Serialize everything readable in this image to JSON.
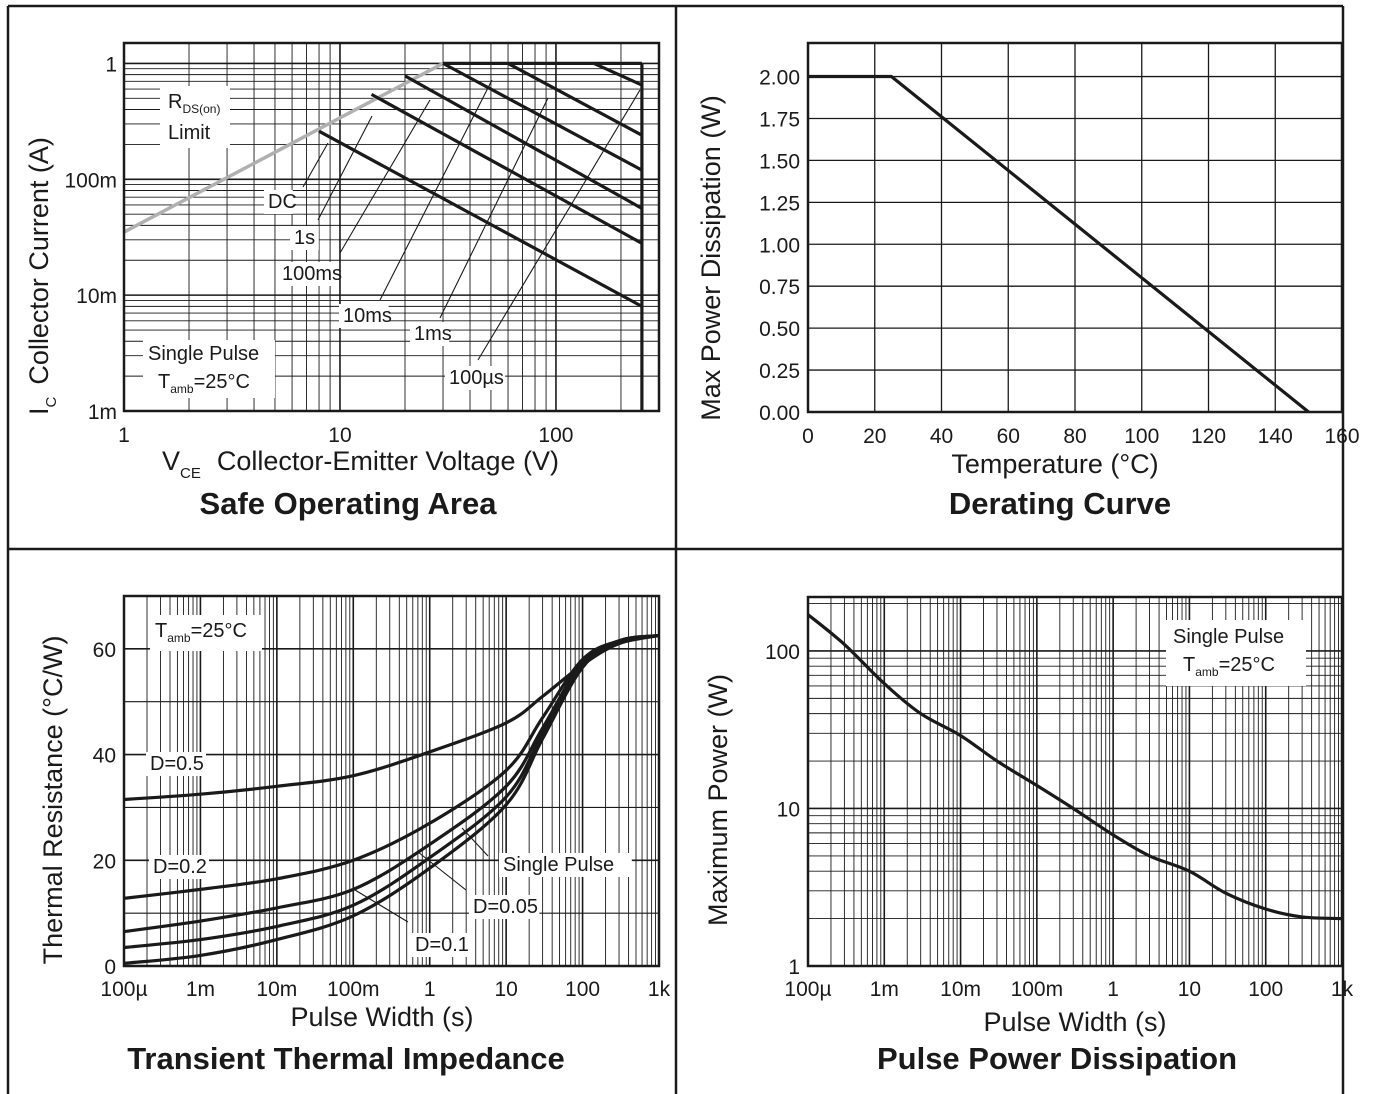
{
  "chart_data": [
    {
      "type": "line",
      "title": "Safe Operating Area",
      "xlabel": {
        "main": "V",
        "sub": "CE",
        "rest": "Collector-Emitter Voltage (V)"
      },
      "ylabel": {
        "main": "I",
        "sub": "C",
        "rest": "Collector Current (A)"
      },
      "xscale": "log",
      "yscale": "log",
      "xlim": [
        1,
        300
      ],
      "ylim": [
        0.001,
        1.5
      ],
      "grid": true,
      "xticks": [
        {
          "v": 1,
          "label": "1"
        },
        {
          "v": 10,
          "label": "10"
        },
        {
          "v": 100,
          "label": "100"
        }
      ],
      "yticks": [
        {
          "v": 1,
          "label": "1"
        },
        {
          "v": 0.1,
          "label": "100m"
        },
        {
          "v": 0.01,
          "label": "10m"
        },
        {
          "v": 0.001,
          "label": "1m"
        }
      ],
      "rds_limit": {
        "label_main": "R",
        "label_sub": "DS(on)",
        "label_line2": "Limit",
        "x": [
          1,
          30
        ],
        "y": [
          0.035,
          1.0
        ],
        "color": "#b0b0b0"
      },
      "series": [
        {
          "name": "DC",
          "x": [
            8,
            250
          ],
          "y": [
            0.26,
            0.008
          ]
        },
        {
          "name": "1s",
          "x": [
            14,
            250
          ],
          "y": [
            0.54,
            0.028
          ]
        },
        {
          "name": "100ms",
          "x": [
            20,
            250
          ],
          "y": [
            0.78,
            0.056
          ]
        },
        {
          "name": "10ms",
          "x": [
            30,
            250
          ],
          "y": [
            1.0,
            0.12
          ]
        },
        {
          "name": "1ms",
          "x": [
            60,
            250
          ],
          "y": [
            1.0,
            0.24
          ]
        },
        {
          "name": "100µs",
          "x": [
            150,
            250
          ],
          "y": [
            1.0,
            0.65
          ]
        }
      ],
      "voltage_limit": {
        "v": 250,
        "i_max": 1.0
      },
      "annotation": {
        "line1": "Single Pulse",
        "line2_main": "T",
        "line2_sub": "amb",
        "line2_rest": "=25°C"
      }
    },
    {
      "type": "line",
      "title": "Derating Curve",
      "xlabel": "Temperature (°C)",
      "ylabel": "Max Power Dissipation (W)",
      "xlim": [
        0,
        160
      ],
      "ylim": [
        0,
        2.2
      ],
      "grid": true,
      "xticks": [
        {
          "v": 0,
          "label": "0"
        },
        {
          "v": 20,
          "label": "20"
        },
        {
          "v": 40,
          "label": "40"
        },
        {
          "v": 60,
          "label": "60"
        },
        {
          "v": 80,
          "label": "80"
        },
        {
          "v": 100,
          "label": "100"
        },
        {
          "v": 120,
          "label": "120"
        },
        {
          "v": 140,
          "label": "140"
        },
        {
          "v": 160,
          "label": "160"
        }
      ],
      "yticks": [
        {
          "v": 0,
          "label": "0.00"
        },
        {
          "v": 0.25,
          "label": "0.25"
        },
        {
          "v": 0.5,
          "label": "0.50"
        },
        {
          "v": 0.75,
          "label": "0.75"
        },
        {
          "v": 1.0,
          "label": "1.00"
        },
        {
          "v": 1.25,
          "label": "1.25"
        },
        {
          "v": 1.5,
          "label": "1.50"
        },
        {
          "v": 1.75,
          "label": "1.75"
        },
        {
          "v": 2.0,
          "label": "2.00"
        }
      ],
      "series": [
        {
          "name": "",
          "x": [
            0,
            25,
            150
          ],
          "y": [
            2.0,
            2.0,
            0.0
          ]
        }
      ]
    },
    {
      "type": "line",
      "title": "Transient Thermal Impedance",
      "xlabel": "Pulse Width (s)",
      "ylabel": "Thermal Resistance (°C/W)",
      "xscale": "log",
      "xlim": [
        0.0001,
        1000
      ],
      "ylim": [
        0,
        70
      ],
      "grid": true,
      "xticks": [
        {
          "v": 0.0001,
          "label": "100µ"
        },
        {
          "v": 0.001,
          "label": "1m"
        },
        {
          "v": 0.01,
          "label": "10m"
        },
        {
          "v": 0.1,
          "label": "100m"
        },
        {
          "v": 1,
          "label": "1"
        },
        {
          "v": 10,
          "label": "10"
        },
        {
          "v": 100,
          "label": "100"
        },
        {
          "v": 1000,
          "label": "1k"
        }
      ],
      "yticks": [
        {
          "v": 0,
          "label": "0"
        },
        {
          "v": 20,
          "label": "20"
        },
        {
          "v": 40,
          "label": "40"
        },
        {
          "v": 60,
          "label": "60"
        }
      ],
      "annotation": {
        "line1_main": "T",
        "line1_sub": "amb",
        "line1_rest": "=25°C"
      },
      "series": [
        {
          "name": "D=0.5",
          "x": [
            0.0001,
            0.001,
            0.01,
            0.1,
            1,
            10,
            30,
            100,
            300,
            1000
          ],
          "y": [
            31.5,
            32.5,
            34,
            36,
            40.5,
            46,
            51,
            57,
            61,
            62.5
          ]
        },
        {
          "name": "D=0.2",
          "x": [
            0.0001,
            0.001,
            0.01,
            0.1,
            1,
            10,
            30,
            100,
            300,
            1000
          ],
          "y": [
            12.8,
            14.5,
            16.5,
            20,
            27,
            37,
            47,
            58,
            61.5,
            62.5
          ]
        },
        {
          "name": "D=0.1",
          "x": [
            0.0001,
            0.001,
            0.01,
            0.1,
            1,
            10,
            30,
            100,
            300,
            1000
          ],
          "y": [
            6.5,
            8.5,
            11,
            14.5,
            23,
            34,
            45,
            57.5,
            61.5,
            62.5
          ]
        },
        {
          "name": "D=0.05",
          "x": [
            0.0001,
            0.001,
            0.01,
            0.1,
            1,
            10,
            30,
            100,
            300,
            1000
          ],
          "y": [
            3.5,
            5,
            7.5,
            11.5,
            20.5,
            32,
            44,
            57,
            61.5,
            62.5
          ]
        },
        {
          "name": "Single Pulse",
          "x": [
            0.0001,
            0.001,
            0.01,
            0.1,
            1,
            10,
            30,
            100,
            300,
            1000
          ],
          "y": [
            0.5,
            2,
            5,
            9.5,
            18.5,
            30.5,
            43,
            56.5,
            61.5,
            62.5
          ]
        }
      ],
      "labels": [
        "D=0.5",
        "D=0.2",
        "Single Pulse",
        "D=0.05",
        "D=0.1"
      ]
    },
    {
      "type": "line",
      "title": "Pulse Power Dissipation",
      "xlabel": "Pulse Width (s)",
      "ylabel": "Maximum Power (W)",
      "xscale": "log",
      "yscale": "log",
      "xlim": [
        0.0001,
        1000
      ],
      "ylim": [
        1,
        220
      ],
      "grid": true,
      "xticks": [
        {
          "v": 0.0001,
          "label": "100µ"
        },
        {
          "v": 0.001,
          "label": "1m"
        },
        {
          "v": 0.01,
          "label": "10m"
        },
        {
          "v": 0.1,
          "label": "100m"
        },
        {
          "v": 1,
          "label": "1"
        },
        {
          "v": 10,
          "label": "10"
        },
        {
          "v": 100,
          "label": "100"
        },
        {
          "v": 1000,
          "label": "1k"
        }
      ],
      "yticks": [
        {
          "v": 1,
          "label": "1"
        },
        {
          "v": 10,
          "label": "10"
        },
        {
          "v": 100,
          "label": "100"
        }
      ],
      "annotation": {
        "line1": "Single Pulse",
        "line2_main": "T",
        "line2_sub": "amb",
        "line2_rest": "=25°C"
      },
      "series": [
        {
          "name": "",
          "x": [
            0.0001,
            0.0003,
            0.001,
            0.003,
            0.01,
            0.03,
            0.1,
            0.3,
            1,
            3,
            10,
            30,
            100,
            300,
            1000
          ],
          "y": [
            170,
            110,
            62,
            40,
            29,
            20,
            14,
            10,
            6.8,
            5.0,
            4.0,
            2.9,
            2.3,
            2.05,
            2.0
          ]
        }
      ]
    }
  ]
}
